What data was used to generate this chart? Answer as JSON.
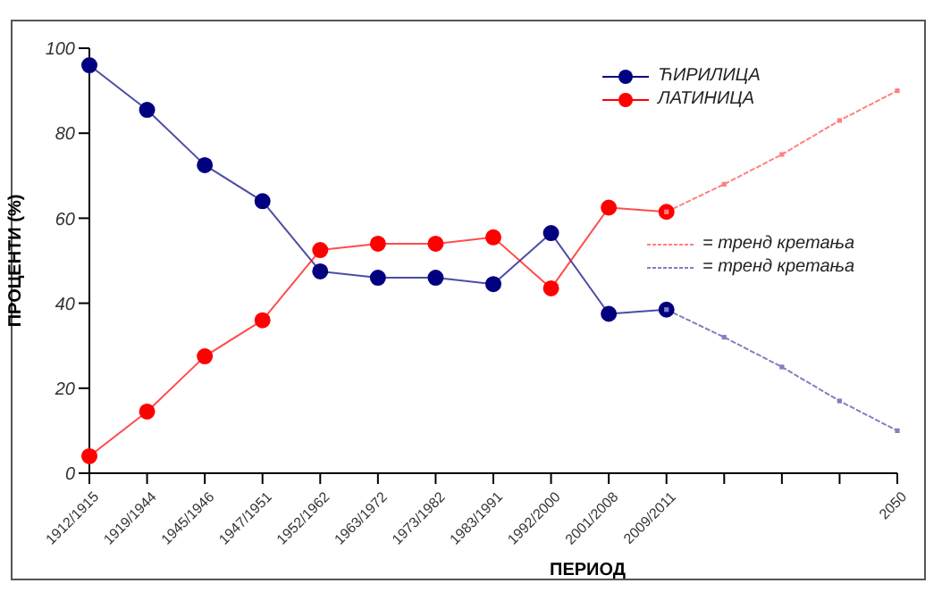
{
  "chart_data": {
    "type": "line",
    "xlabel": "ПЕРИОД",
    "ylabel": "ПРОЦЕНТИ (%)",
    "categories": [
      "1912/1915",
      "1919/1944",
      "1945/1946",
      "1947/1951",
      "1952/1962",
      "1963/1972",
      "1973/1982",
      "1983/1991",
      "1992/2000",
      "2001/2008",
      "2009/2011",
      null,
      null,
      null,
      "2050"
    ],
    "series": [
      {
        "name": "ЋИРИЛИЦА",
        "color": "#000080",
        "marker": "circle",
        "values": [
          96,
          85.5,
          72.5,
          64,
          47.5,
          46,
          46,
          44.5,
          56.5,
          37.5,
          38.5,
          null,
          null,
          null,
          null
        ]
      },
      {
        "name": "ЛАТИНИЦА",
        "color": "#ff0000",
        "marker": "circle",
        "values": [
          4,
          14.5,
          27.5,
          36,
          52.5,
          54,
          54,
          55.5,
          43.5,
          62.5,
          61.5,
          null,
          null,
          null,
          null
        ]
      },
      {
        "name": "= тренд кретања",
        "color": "#ff8080",
        "line_style": "dashed",
        "marker": "square",
        "values": [
          null,
          null,
          null,
          null,
          null,
          null,
          null,
          null,
          null,
          null,
          61.5,
          68,
          75,
          83,
          90
        ]
      },
      {
        "name": "= тренд кретања",
        "color": "#8080c0",
        "line_style": "dashed",
        "marker": "square",
        "values": [
          null,
          null,
          null,
          null,
          null,
          null,
          null,
          null,
          null,
          null,
          38.5,
          32,
          25,
          17,
          10
        ]
      }
    ],
    "ylim": [
      0,
      100
    ],
    "yticks": [
      0,
      20,
      40,
      60,
      80,
      100
    ],
    "legend": "top right"
  }
}
